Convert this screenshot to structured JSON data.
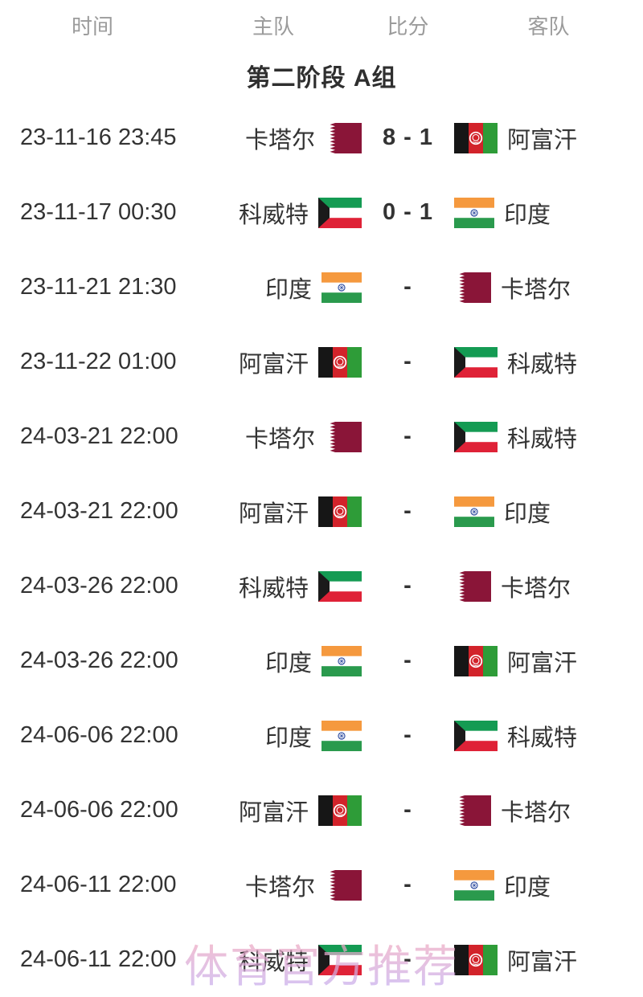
{
  "header": {
    "time": "时间",
    "home": "主队",
    "score": "比分",
    "away": "客队"
  },
  "group_title": "第二阶段 A组",
  "watermark": "体育官方推荐",
  "colors": {
    "page_bg": "#ffffff",
    "header_text": "#9b9b9b",
    "title_text": "#2f2f2f",
    "row_text": "#333333",
    "watermark_top": "#f2a7bc",
    "watermark_bottom": "#c7adee"
  },
  "flags": {
    "qatar": {
      "white": "#ffffff",
      "maroon": "#8a1538"
    },
    "afghanistan": {
      "black": "#161616",
      "red": "#d2232a",
      "green": "#2e9c38",
      "emblem": "#ffffff"
    },
    "kuwait": {
      "green": "#149b53",
      "white": "#ffffff",
      "red": "#df2237",
      "black": "#1a1a1a"
    },
    "india": {
      "saffron": "#f5993e",
      "white": "#ffffff",
      "green": "#2a9a4d",
      "chakra": "#28479c"
    }
  },
  "matches": [
    {
      "time": "23-11-16 23:45",
      "home": "卡塔尔",
      "home_flag": "qatar",
      "score": "8 - 1",
      "away": "阿富汗",
      "away_flag": "afghanistan"
    },
    {
      "time": "23-11-17 00:30",
      "home": "科威特",
      "home_flag": "kuwait",
      "score": "0 - 1",
      "away": "印度",
      "away_flag": "india"
    },
    {
      "time": "23-11-21 21:30",
      "home": "印度",
      "home_flag": "india",
      "score": "-",
      "away": "卡塔尔",
      "away_flag": "qatar"
    },
    {
      "time": "23-11-22 01:00",
      "home": "阿富汗",
      "home_flag": "afghanistan",
      "score": "-",
      "away": "科威特",
      "away_flag": "kuwait"
    },
    {
      "time": "24-03-21 22:00",
      "home": "卡塔尔",
      "home_flag": "qatar",
      "score": "-",
      "away": "科威特",
      "away_flag": "kuwait"
    },
    {
      "time": "24-03-21 22:00",
      "home": "阿富汗",
      "home_flag": "afghanistan",
      "score": "-",
      "away": "印度",
      "away_flag": "india"
    },
    {
      "time": "24-03-26 22:00",
      "home": "科威特",
      "home_flag": "kuwait",
      "score": "-",
      "away": "卡塔尔",
      "away_flag": "qatar"
    },
    {
      "time": "24-03-26 22:00",
      "home": "印度",
      "home_flag": "india",
      "score": "-",
      "away": "阿富汗",
      "away_flag": "afghanistan"
    },
    {
      "time": "24-06-06 22:00",
      "home": "印度",
      "home_flag": "india",
      "score": "-",
      "away": "科威特",
      "away_flag": "kuwait"
    },
    {
      "time": "24-06-06 22:00",
      "home": "阿富汗",
      "home_flag": "afghanistan",
      "score": "-",
      "away": "卡塔尔",
      "away_flag": "qatar"
    },
    {
      "time": "24-06-11 22:00",
      "home": "卡塔尔",
      "home_flag": "qatar",
      "score": "-",
      "away": "印度",
      "away_flag": "india"
    },
    {
      "time": "24-06-11 22:00",
      "home": "科威特",
      "home_flag": "kuwait",
      "score": "-",
      "away": "阿富汗",
      "away_flag": "afghanistan"
    }
  ]
}
